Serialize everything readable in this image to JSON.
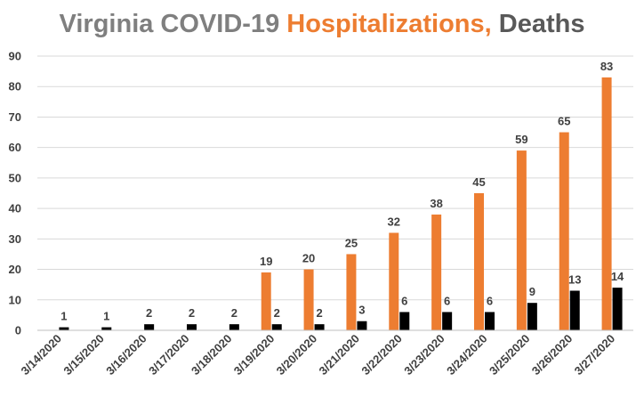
{
  "chart_data": {
    "type": "bar",
    "title_parts": [
      {
        "text": "Virginia COVID-19 ",
        "color": "#7f7f7f"
      },
      {
        "text": "Hospitalizations,",
        "color": "#ed7d31"
      },
      {
        "text": " Deaths",
        "color": "#595959"
      }
    ],
    "categories": [
      "3/14/2020",
      "3/15/2020",
      "3/16/2020",
      "3/17/2020",
      "3/18/2020",
      "3/19/2020",
      "3/20/2020",
      "3/21/2020",
      "3/22/2020",
      "3/23/2020",
      "3/24/2020",
      "3/25/2020",
      "3/26/2020",
      "3/27/2020"
    ],
    "series": [
      {
        "values": [
          0,
          0,
          0,
          0,
          0,
          19,
          20,
          25,
          32,
          38,
          45,
          59,
          65,
          83
        ],
        "color": "#ed7d31",
        "labels": [
          "",
          "",
          "",
          "",
          "",
          "19",
          "20",
          "25",
          "32",
          "38",
          "45",
          "59",
          "65",
          "83"
        ]
      },
      {
        "values": [
          1,
          1,
          2,
          2,
          2,
          2,
          2,
          3,
          6,
          6,
          6,
          9,
          13,
          14
        ],
        "color": "#000000",
        "labels": [
          "1",
          "1",
          "2",
          "2",
          "2",
          "2",
          "2",
          "3",
          "6",
          "6",
          "6",
          "9",
          "13",
          "14"
        ]
      }
    ],
    "ylim": [
      0,
      90
    ],
    "yticks": [
      "0",
      "10",
      "20",
      "30",
      "40",
      "50",
      "60",
      "70",
      "80",
      "90"
    ],
    "grid": true,
    "legend": "none"
  }
}
